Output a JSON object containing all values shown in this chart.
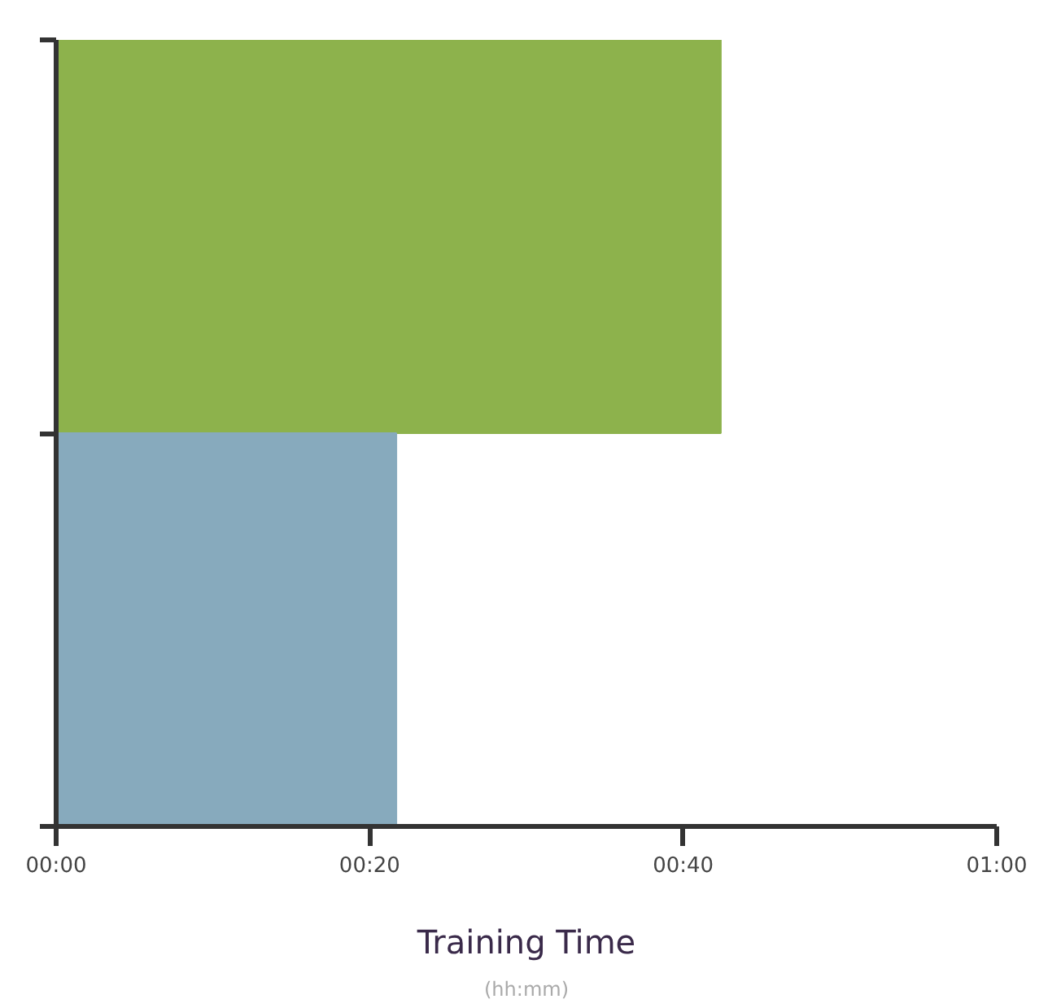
{
  "chart_data": {
    "type": "bar",
    "orientation": "horizontal",
    "categories": [
      null,
      null
    ],
    "values": [
      42.4,
      21.7
    ],
    "colors": [
      "#8db24c",
      "#87aabd"
    ],
    "xlim": [
      0,
      60
    ],
    "xticks": [
      {
        "value": 0,
        "label": "00:00"
      },
      {
        "value": 20,
        "label": "00:20"
      },
      {
        "value": 40,
        "label": "00:40"
      },
      {
        "value": 60,
        "label": "01:00"
      }
    ],
    "xlabel": "Training Time",
    "annotations": [
      "(hh:mm)"
    ],
    "tick_labels": "x",
    "grid": false
  }
}
